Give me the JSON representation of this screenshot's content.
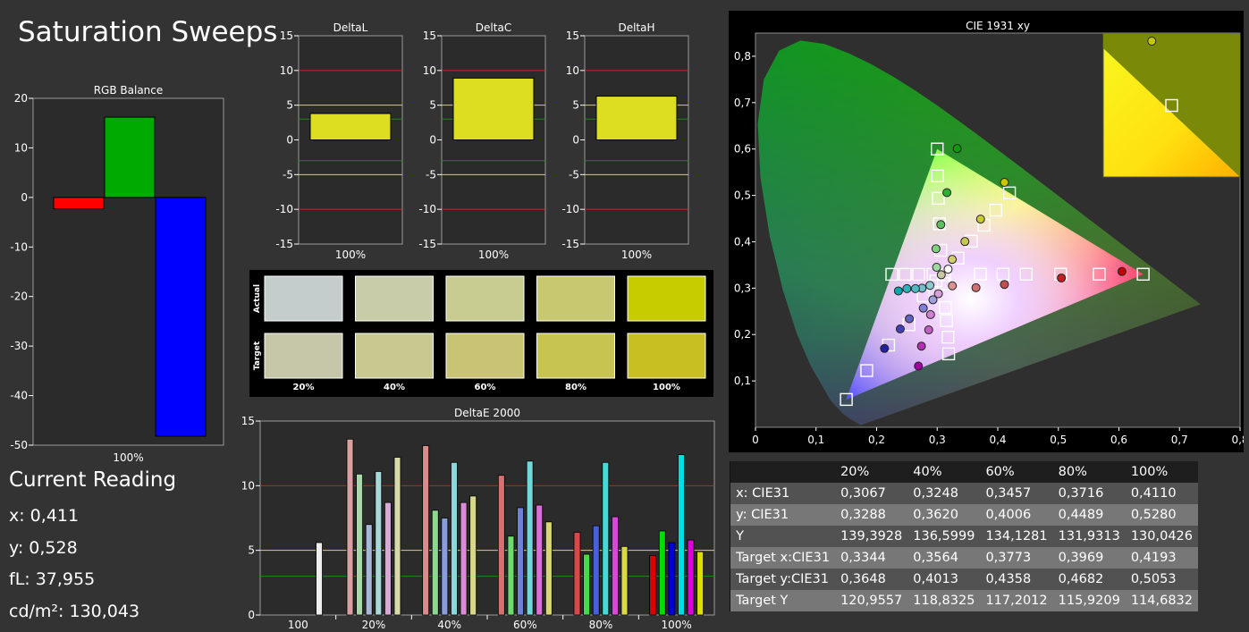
{
  "page": {
    "title": "Saturation Sweeps"
  },
  "reading": {
    "title": "Current Reading",
    "x": "x: 0,411",
    "y": "y: 0,528",
    "fl": "fL: 37,955",
    "cdm2": "cd/m²: 130,043"
  },
  "chart_data": [
    {
      "id": "rgb_balance",
      "type": "bar",
      "title": "RGB Balance",
      "categories": [
        "100%"
      ],
      "series": [
        {
          "values": [
            -2.3
          ],
          "color": "#ff0000"
        },
        {
          "values": [
            16.2
          ],
          "color": "#00aa00"
        },
        {
          "values": [
            -48.2
          ],
          "color": "#0000ff"
        }
      ],
      "ylim": [
        -50,
        20
      ],
      "yticks": [
        20,
        10,
        0,
        -10,
        -20,
        -30,
        -40,
        -50
      ],
      "xlabel": "100%",
      "grid": false
    },
    {
      "id": "delta_l",
      "type": "bar",
      "title": "DeltaL",
      "categories": [
        "100%"
      ],
      "values": [
        3.8
      ],
      "ylim": [
        -15,
        15
      ],
      "yticks": [
        15,
        10,
        5,
        0,
        -5,
        -10,
        -15
      ],
      "xlabel": "100%",
      "bar_color": "#dddd22"
    },
    {
      "id": "delta_c",
      "type": "bar",
      "title": "DeltaC",
      "categories": [
        "100%"
      ],
      "values": [
        8.9
      ],
      "ylim": [
        -15,
        15
      ],
      "yticks": [
        15,
        10,
        5,
        0,
        -5,
        -10,
        -15
      ],
      "xlabel": "100%",
      "bar_color": "#dddd22"
    },
    {
      "id": "delta_h",
      "type": "bar",
      "title": "DeltaH",
      "categories": [
        "100%"
      ],
      "values": [
        6.3
      ],
      "ylim": [
        -15,
        15
      ],
      "yticks": [
        15,
        10,
        5,
        0,
        -5,
        -10,
        -15
      ],
      "xlabel": "100%",
      "bar_color": "#dddd22"
    },
    {
      "id": "swatches",
      "type": "table",
      "row_labels": [
        "Actual",
        "Target"
      ],
      "columns": [
        "20%",
        "40%",
        "60%",
        "80%",
        "100%"
      ],
      "actual_colors": [
        "#c5cccc",
        "#c8cca8",
        "#c8cc90",
        "#c8c870",
        "#c6cc00"
      ],
      "target_colors": [
        "#c6c6a8",
        "#c8c890",
        "#c8c474",
        "#c8c452",
        "#c8c022"
      ]
    },
    {
      "id": "delta_e",
      "type": "bar",
      "title": "DeltaE 2000",
      "categories": [
        "100",
        "20%",
        "40%",
        "60%",
        "80%",
        "100%"
      ],
      "ylim": [
        0,
        15
      ],
      "yticks": [
        15,
        10,
        5,
        0
      ],
      "groups": [
        {
          "values": [
            5.6
          ],
          "colors": [
            "#eeeeee"
          ]
        },
        {
          "values": [
            13.6,
            10.9,
            7.0,
            11.1,
            8.7,
            12.2
          ],
          "colors": [
            "#d8a0a0",
            "#a8d8a8",
            "#a8b8d8",
            "#a8d8d8",
            "#d8a8d8",
            "#d8d8a8"
          ]
        },
        {
          "values": [
            13.1,
            8.1,
            7.5,
            11.8,
            8.7,
            9.2
          ],
          "colors": [
            "#d88c8c",
            "#8cd88c",
            "#8c9cd8",
            "#8cd8d8",
            "#d88cd8",
            "#d8d88c"
          ]
        },
        {
          "values": [
            10.8,
            6.1,
            8.3,
            11.9,
            8.5,
            7.2
          ],
          "colors": [
            "#d87070",
            "#70d870",
            "#7080d8",
            "#70d8d8",
            "#d870d8",
            "#d8d870"
          ]
        },
        {
          "values": [
            6.4,
            4.7,
            6.9,
            11.8,
            7.6,
            5.3
          ],
          "colors": [
            "#d84848",
            "#48d848",
            "#4860d8",
            "#48d8d8",
            "#d848d8",
            "#d8d848"
          ]
        },
        {
          "values": [
            4.6,
            6.5,
            5.6,
            12.4,
            5.8,
            4.9
          ],
          "colors": [
            "#dd0000",
            "#00dd00",
            "#0000dd",
            "#00dddd",
            "#dd00dd",
            "#dddd00"
          ]
        }
      ]
    },
    {
      "id": "cie",
      "type": "scatter",
      "title": "CIE 1931 xy",
      "xlim": [
        0,
        0.8
      ],
      "ylim": [
        0,
        0.85
      ],
      "xticks": [
        "0",
        "0,1",
        "0,2",
        "0,3",
        "0,4",
        "0,5",
        "0,6",
        "0,7",
        "0,8"
      ],
      "yticks": [
        "0,1",
        "0,2",
        "0,3",
        "0,4",
        "0,5",
        "0,6",
        "0,7",
        "0,8"
      ],
      "gamut": [
        [
          0.64,
          0.33
        ],
        [
          0.3,
          0.6
        ],
        [
          0.15,
          0.06
        ]
      ],
      "targets": [
        [
          0.3344,
          0.3648
        ],
        [
          0.3564,
          0.4013
        ],
        [
          0.3773,
          0.4358
        ],
        [
          0.3969,
          0.4682
        ],
        [
          0.4193,
          0.5053
        ],
        [
          0.3713,
          0.3301
        ],
        [
          0.4087,
          0.3302
        ],
        [
          0.4469,
          0.3301
        ],
        [
          0.5037,
          0.3301
        ],
        [
          0.5674,
          0.3301
        ],
        [
          0.64,
          0.33
        ],
        [
          0.3121,
          0.3288
        ],
        [
          0.3058,
          0.3817
        ],
        [
          0.3036,
          0.4388
        ],
        [
          0.3019,
          0.4937
        ],
        [
          0.3007,
          0.5419
        ],
        [
          0.3,
          0.6
        ],
        [
          0.2979,
          0.3155
        ],
        [
          0.2769,
          0.2834
        ],
        [
          0.2533,
          0.2213
        ],
        [
          0.2198,
          0.1773
        ],
        [
          0.1837,
          0.1223
        ],
        [
          0.15,
          0.06
        ],
        [
          0.3101,
          0.3099
        ],
        [
          0.3135,
          0.2584
        ],
        [
          0.3155,
          0.2299
        ],
        [
          0.3177,
          0.1944
        ],
        [
          0.3189,
          0.1583
        ],
        [
          0.2931,
          0.3298
        ],
        [
          0.2693,
          0.3297
        ],
        [
          0.2472,
          0.3298
        ],
        [
          0.2251,
          0.3298
        ]
      ],
      "measured": [
        {
          "x": 0.3067,
          "y": 0.3288,
          "c": "#c8c8a0"
        },
        {
          "x": 0.3248,
          "y": 0.362,
          "c": "#d0d070"
        },
        {
          "x": 0.3457,
          "y": 0.4006,
          "c": "#c8c850"
        },
        {
          "x": 0.3716,
          "y": 0.4489,
          "c": "#c8c830"
        },
        {
          "x": 0.411,
          "y": 0.528,
          "c": "#c8c800"
        },
        {
          "x": 0.318,
          "y": 0.341,
          "c": "#ffffff"
        },
        {
          "x": 0.325,
          "y": 0.305,
          "c": "#d89090"
        },
        {
          "x": 0.364,
          "y": 0.301,
          "c": "#d07070"
        },
        {
          "x": 0.411,
          "y": 0.308,
          "c": "#c05050"
        },
        {
          "x": 0.505,
          "y": 0.322,
          "c": "#c02020"
        },
        {
          "x": 0.605,
          "y": 0.336,
          "c": "#c00000"
        },
        {
          "x": 0.299,
          "y": 0.345,
          "c": "#a0d8a0"
        },
        {
          "x": 0.298,
          "y": 0.385,
          "c": "#80d080"
        },
        {
          "x": 0.306,
          "y": 0.437,
          "c": "#60c060"
        },
        {
          "x": 0.316,
          "y": 0.506,
          "c": "#30b030"
        },
        {
          "x": 0.333,
          "y": 0.601,
          "c": "#00a000"
        },
        {
          "x": 0.288,
          "y": 0.306,
          "c": "#90c8d0"
        },
        {
          "x": 0.275,
          "y": 0.3,
          "c": "#70c0c8"
        },
        {
          "x": 0.264,
          "y": 0.299,
          "c": "#50b8c0"
        },
        {
          "x": 0.25,
          "y": 0.299,
          "c": "#30b0b8"
        },
        {
          "x": 0.236,
          "y": 0.294,
          "c": "#00a8b0"
        },
        {
          "x": 0.293,
          "y": 0.275,
          "c": "#a0a0d8"
        },
        {
          "x": 0.277,
          "y": 0.257,
          "c": "#8080d0"
        },
        {
          "x": 0.254,
          "y": 0.234,
          "c": "#6060c0"
        },
        {
          "x": 0.239,
          "y": 0.212,
          "c": "#4040b0"
        },
        {
          "x": 0.213,
          "y": 0.17,
          "c": "#2020a0"
        },
        {
          "x": 0.302,
          "y": 0.288,
          "c": "#d8a0d8"
        },
        {
          "x": 0.289,
          "y": 0.243,
          "c": "#d080d0"
        },
        {
          "x": 0.286,
          "y": 0.21,
          "c": "#c060c0"
        },
        {
          "x": 0.274,
          "y": 0.175,
          "c": "#b030b0"
        },
        {
          "x": 0.269,
          "y": 0.132,
          "c": "#a000a0"
        }
      ],
      "inset_target": [
        0.4193,
        0.5053
      ],
      "inset_measured": {
        "x": 0.411,
        "y": 0.528,
        "c": "#c8c800"
      }
    }
  ],
  "table": {
    "columns": [
      "20%",
      "40%",
      "60%",
      "80%",
      "100%"
    ],
    "rows": [
      {
        "label": "x: CIE31",
        "values": [
          "0,3067",
          "0,3248",
          "0,3457",
          "0,3716",
          "0,4110"
        ]
      },
      {
        "label": "y: CIE31",
        "values": [
          "0,3288",
          "0,3620",
          "0,4006",
          "0,4489",
          "0,5280"
        ]
      },
      {
        "label": "Y",
        "values": [
          "139,3928",
          "136,5999",
          "134,1281",
          "131,9313",
          "130,0426"
        ]
      },
      {
        "label": "Target x:CIE31",
        "values": [
          "0,3344",
          "0,3564",
          "0,3773",
          "0,3969",
          "0,4193"
        ]
      },
      {
        "label": "Target y:CIE31",
        "values": [
          "0,3648",
          "0,4013",
          "0,4358",
          "0,4682",
          "0,5053"
        ]
      },
      {
        "label": "Target Y",
        "values": [
          "120,9557",
          "118,8325",
          "117,2012",
          "115,9209",
          "114,6832"
        ]
      }
    ]
  }
}
